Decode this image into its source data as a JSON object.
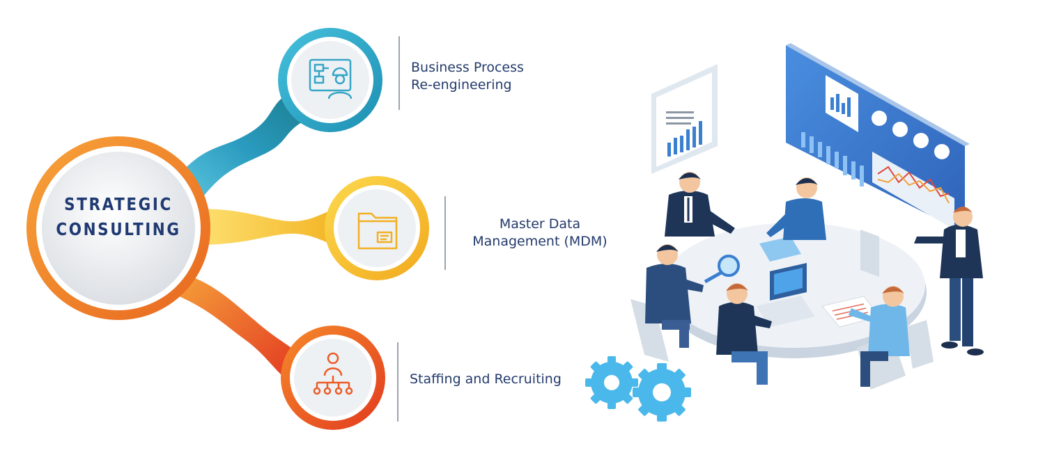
{
  "hub": {
    "title_line1": "STRATEGIC",
    "title_line2": "CONSULTING"
  },
  "branches": [
    {
      "line1": "Business Process",
      "line2": "Re-engineering",
      "color": "#2ba9c9",
      "icon": "process-engineer-icon"
    },
    {
      "line1": "Master Data",
      "line2": "Management (MDM)",
      "color": "#f6c12c",
      "icon": "folder-icon"
    },
    {
      "line1": "Staffing and Recruiting",
      "line2": "",
      "color": "#ef5a24",
      "icon": "org-chart-person-icon"
    }
  ],
  "colors": {
    "title": "#1f3a72",
    "label": "#233a6b",
    "hub_ring": "#f08a2d",
    "teal": "#2ba9c9",
    "yellow": "#f6c12c",
    "orange": "#ef5a24",
    "screen_blue": "#3b7fd1",
    "gear": "#4ab8ea"
  }
}
